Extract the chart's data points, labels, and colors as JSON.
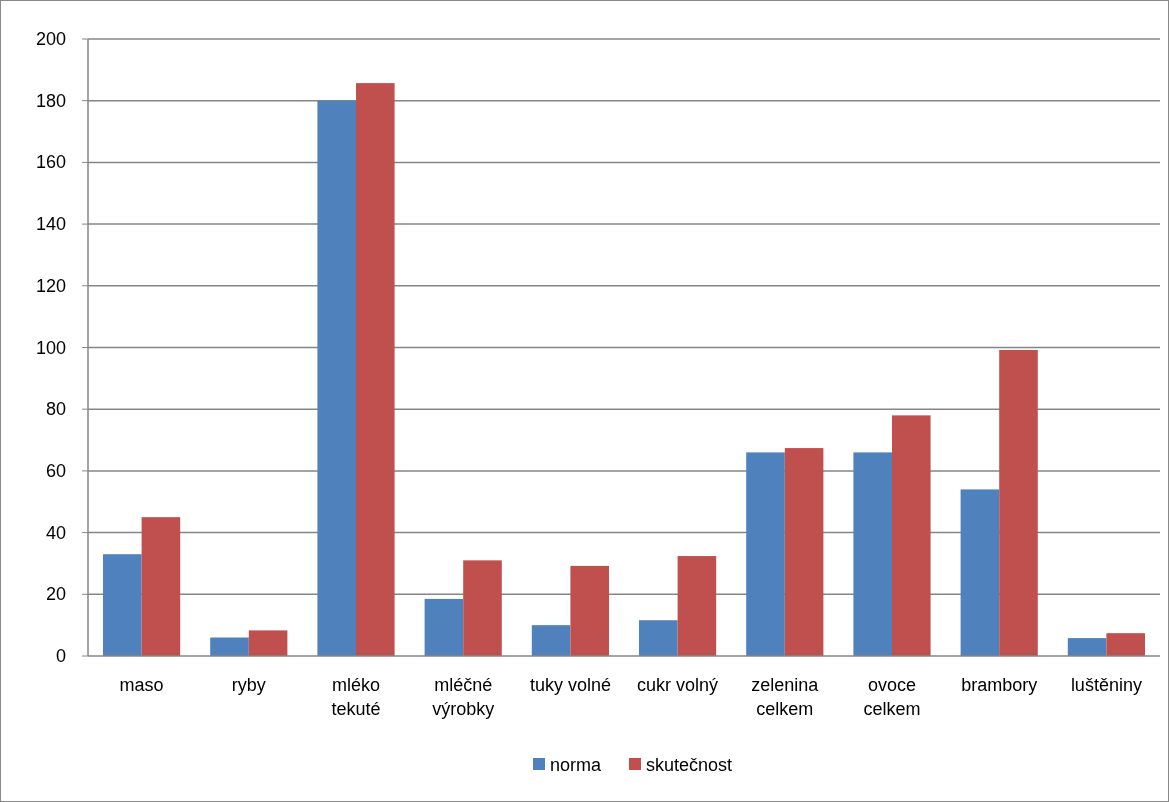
{
  "chart_data": {
    "type": "bar",
    "categories": [
      "maso",
      "ryby",
      "mléko tekuté",
      "mléčné výrobky",
      "tuky volné",
      "cukr volný",
      "zelenina celkem",
      "ovoce celkem",
      "brambory",
      "luštěniny"
    ],
    "series": [
      {
        "name": "norma",
        "color": "#4f81bd",
        "values": [
          33,
          6,
          180,
          18.5,
          10,
          11.6,
          66,
          66,
          54,
          5.8
        ]
      },
      {
        "name": "skutečnost",
        "color": "#c0504d",
        "values": [
          45,
          8.3,
          185.7,
          31,
          29.2,
          32.4,
          67.4,
          78,
          99.2,
          7.4
        ]
      }
    ],
    "ylim": [
      0,
      200
    ],
    "yticks": [
      0,
      20,
      40,
      60,
      80,
      100,
      120,
      140,
      160,
      180,
      200
    ],
    "grid": "y",
    "legend": "bottom"
  }
}
